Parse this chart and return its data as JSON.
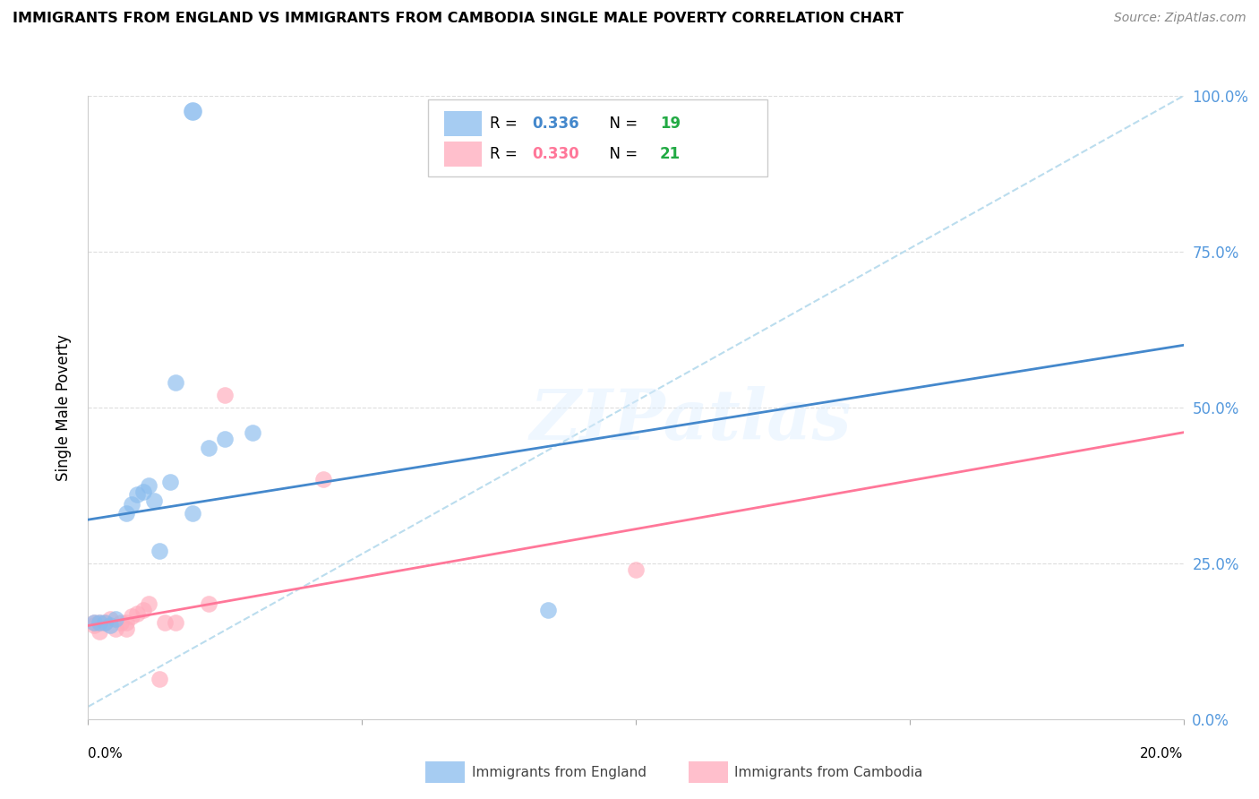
{
  "title": "IMMIGRANTS FROM ENGLAND VS IMMIGRANTS FROM CAMBODIA SINGLE MALE POVERTY CORRELATION CHART",
  "source": "Source: ZipAtlas.com",
  "ylabel": "Single Male Poverty",
  "watermark": "ZIPatlas",
  "england_color": "#88BBEE",
  "cambodia_color": "#FFAABB",
  "england_line_color": "#4488CC",
  "cambodia_line_color": "#FF7799",
  "dashed_line_color": "#BBDDEE",
  "england_R": "0.336",
  "england_N": "19",
  "cambodia_R": "0.330",
  "cambodia_N": "21",
  "R_color": "#4488CC",
  "N_color": "#22AA44",
  "cam_R_color": "#FF7799",
  "background_color": "#FFFFFF",
  "grid_color": "#DDDDDD",
  "england_scatter": [
    [
      0.001,
      0.155
    ],
    [
      0.002,
      0.155
    ],
    [
      0.003,
      0.155
    ],
    [
      0.004,
      0.15
    ],
    [
      0.005,
      0.16
    ],
    [
      0.007,
      0.33
    ],
    [
      0.008,
      0.345
    ],
    [
      0.009,
      0.36
    ],
    [
      0.01,
      0.365
    ],
    [
      0.011,
      0.375
    ],
    [
      0.012,
      0.35
    ],
    [
      0.013,
      0.27
    ],
    [
      0.015,
      0.38
    ],
    [
      0.016,
      0.54
    ],
    [
      0.019,
      0.33
    ],
    [
      0.022,
      0.435
    ],
    [
      0.025,
      0.45
    ],
    [
      0.03,
      0.46
    ],
    [
      0.084,
      0.175
    ]
  ],
  "england_outlier": [
    0.019,
    0.975
  ],
  "cambodia_scatter": [
    [
      0.001,
      0.155
    ],
    [
      0.001,
      0.15
    ],
    [
      0.002,
      0.155
    ],
    [
      0.002,
      0.14
    ],
    [
      0.003,
      0.155
    ],
    [
      0.004,
      0.16
    ],
    [
      0.005,
      0.145
    ],
    [
      0.006,
      0.155
    ],
    [
      0.007,
      0.155
    ],
    [
      0.007,
      0.145
    ],
    [
      0.008,
      0.165
    ],
    [
      0.009,
      0.17
    ],
    [
      0.01,
      0.175
    ],
    [
      0.011,
      0.185
    ],
    [
      0.013,
      0.065
    ],
    [
      0.014,
      0.155
    ],
    [
      0.016,
      0.155
    ],
    [
      0.022,
      0.185
    ],
    [
      0.025,
      0.52
    ],
    [
      0.043,
      0.385
    ],
    [
      0.1,
      0.24
    ]
  ],
  "xlim": [
    0.0,
    0.2
  ],
  "ylim": [
    0.0,
    1.0
  ],
  "yticks": [
    0.0,
    0.25,
    0.5,
    0.75,
    1.0
  ],
  "xticks": [
    0.0,
    0.05,
    0.1,
    0.15,
    0.2
  ],
  "england_line_manual": [
    0.0,
    0.32,
    0.2,
    0.6
  ],
  "cambodia_line_manual": [
    0.0,
    0.15,
    0.2,
    0.46
  ],
  "dashed_line_manual": [
    0.0,
    0.02,
    0.2,
    1.0
  ]
}
